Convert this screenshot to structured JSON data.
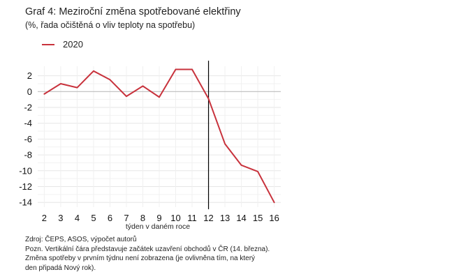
{
  "title": "Graf 4: Meziroční změna spotřebované elektřiny",
  "subtitle": "(%, řada očištěná o vliv teploty na spotřebu)",
  "colors": {
    "series": "#c8323c",
    "grid": "#e6e6e6",
    "zero_line": "#bdbdbd",
    "vline": "#000000"
  },
  "chart_data": {
    "type": "line",
    "title": "Graf 4: Meziroční změna spotřebované elektřiny",
    "subtitle": "(%, řada očištěná o vliv teploty na spotřebu)",
    "xlabel": "týden v daném roce",
    "ylabel": "",
    "x": [
      2,
      3,
      4,
      5,
      6,
      7,
      8,
      9,
      10,
      11,
      12,
      13,
      14,
      15,
      16
    ],
    "x_tick_labels": [
      "2",
      "3",
      "4",
      "5",
      "6",
      "7",
      "8",
      "9",
      "10",
      "11",
      "12",
      "13",
      "14",
      "15",
      "16"
    ],
    "y_ticks": [
      2,
      0,
      -2,
      -4,
      -6,
      -8,
      -10,
      -12,
      -14
    ],
    "y_tick_labels": [
      "2",
      "0",
      "-2",
      "-4",
      "-6",
      "-8",
      "-10",
      "-12",
      "-14"
    ],
    "ylim": [
      -14.6,
      3.2
    ],
    "xlim": [
      1.6,
      16.4
    ],
    "grid": true,
    "legend_position": "top-left",
    "vertical_line": {
      "x": 12
    },
    "series": [
      {
        "name": "2020",
        "color": "#c8323c",
        "values": [
          -0.3,
          1.0,
          0.5,
          2.6,
          1.5,
          -0.6,
          0.7,
          -0.7,
          2.8,
          2.8,
          -0.9,
          -6.6,
          -9.3,
          -10.1,
          -14.0
        ]
      }
    ]
  },
  "notes": [
    "Zdroj: ČEPS, ASOS, výpočet autorů",
    "Pozn. Vertikální čára představuje začátek uzavření obchodů v ČR (14. března).",
    "Změna spotřeby v prvním týdnu není zobrazena (je ovlivněna tím, na který",
    "den připadá Nový rok)."
  ]
}
